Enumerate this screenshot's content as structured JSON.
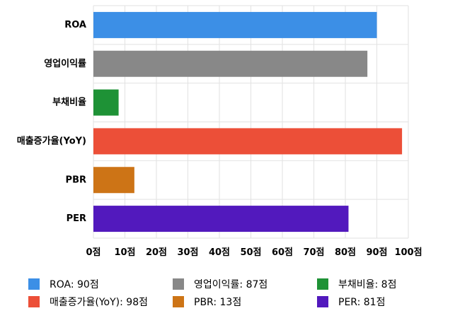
{
  "chart_data": {
    "type": "bar",
    "orientation": "horizontal",
    "title": "",
    "xlabel": "",
    "ylabel": "",
    "categories": [
      "ROA",
      "영업이익률",
      "부채비율",
      "매출증가율(YoY)",
      "PBR",
      "PER"
    ],
    "values": [
      90,
      87,
      8,
      98,
      13,
      81
    ],
    "colors": [
      "#3c8fe6",
      "#888888",
      "#1e9236",
      "#ec4f38",
      "#cd7416",
      "#5219bd"
    ],
    "xlim": [
      0,
      100
    ],
    "x_ticks": [
      0,
      10,
      20,
      30,
      40,
      50,
      60,
      70,
      80,
      90,
      100
    ],
    "tick_suffix": "점",
    "tick_labels": [
      "0점",
      "10점",
      "20점",
      "30점",
      "40점",
      "50점",
      "60점",
      "70점",
      "80점",
      "90점",
      "100점"
    ],
    "grid": true,
    "legend_position": "bottom",
    "legend": [
      {
        "label": "ROA: 90점",
        "color": "#3c8fe6"
      },
      {
        "label": "영업이익률: 87점",
        "color": "#888888"
      },
      {
        "label": "부채비율: 8점",
        "color": "#1e9236"
      },
      {
        "label": "매출증가율(YoY): 98점",
        "color": "#ec4f38"
      },
      {
        "label": "PBR: 13점",
        "color": "#cd7416"
      },
      {
        "label": "PER: 81점",
        "color": "#5219bd"
      }
    ]
  }
}
